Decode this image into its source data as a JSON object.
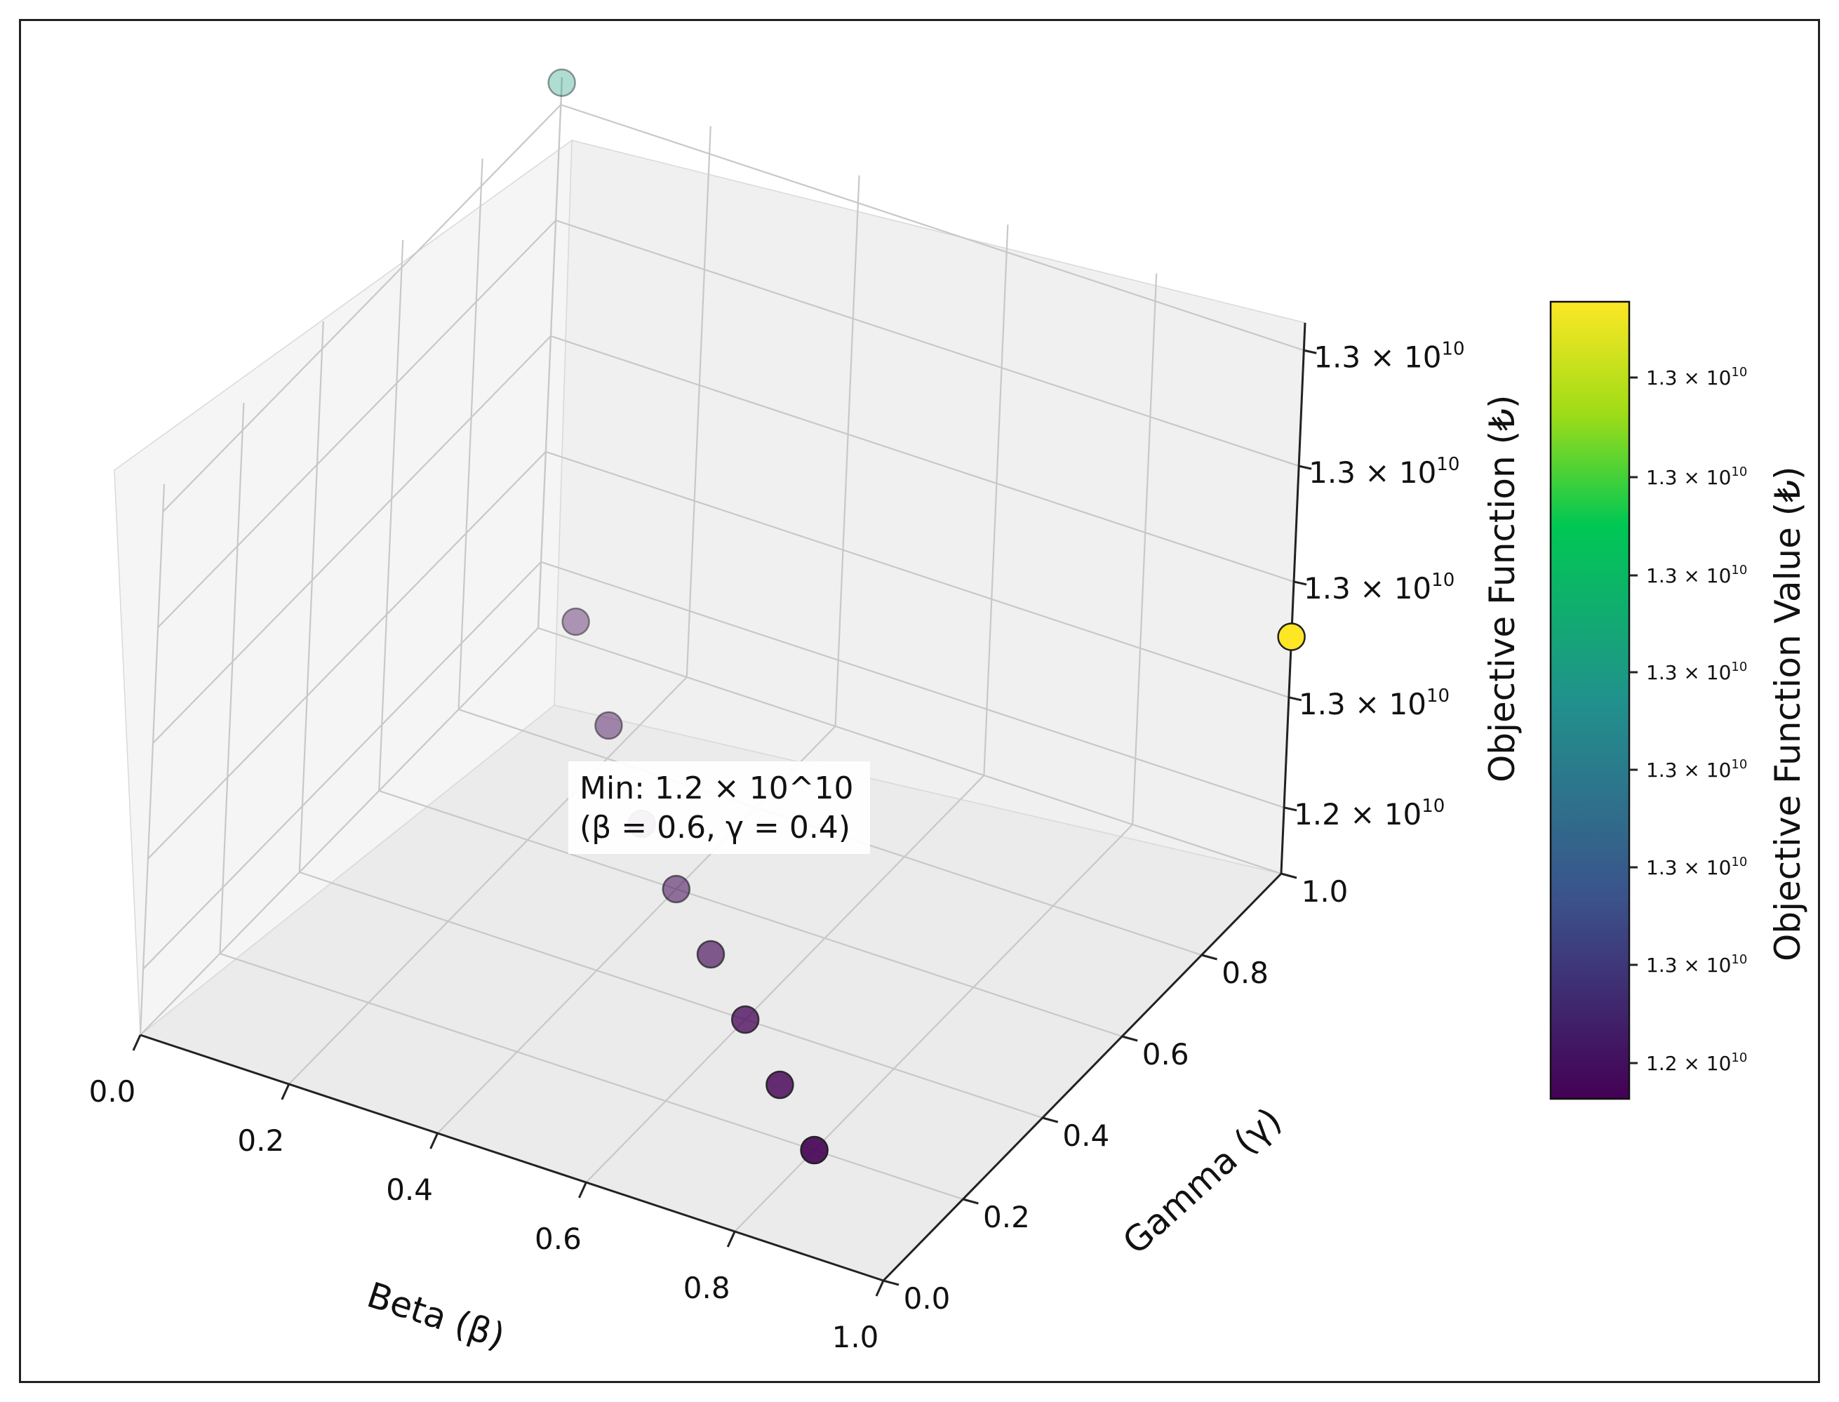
{
  "chart_data": {
    "type": "scatter3d",
    "x_label": "Beta (β)",
    "y_label": "Gamma (γ)",
    "z_label": "Objective Function (₺)",
    "x_ticks": [
      "0.0",
      "0.2",
      "0.4",
      "0.6",
      "0.8",
      "1.0"
    ],
    "y_ticks": [
      "0.0",
      "0.2",
      "0.4",
      "0.6",
      "0.8",
      "1.0"
    ],
    "z_ticks": [
      {
        "mant": "1.2 × 10",
        "exp": "10"
      },
      {
        "mant": "1.3 × 10",
        "exp": "10"
      },
      {
        "mant": "1.3 × 10",
        "exp": "10"
      },
      {
        "mant": "1.3 × 10",
        "exp": "10"
      },
      {
        "mant": "1.3 × 10",
        "exp": "10"
      }
    ],
    "colorbar": {
      "label": "Objective Function Value (₺)",
      "ticks": [
        {
          "mant": "1.2 × 10",
          "exp": "10"
        },
        {
          "mant": "1.3 × 10",
          "exp": "10"
        },
        {
          "mant": "1.3 × 10",
          "exp": "10"
        },
        {
          "mant": "1.3 × 10",
          "exp": "10"
        },
        {
          "mant": "1.3 × 10",
          "exp": "10"
        },
        {
          "mant": "1.3 × 10",
          "exp": "10"
        },
        {
          "mant": "1.3 × 10",
          "exp": "10"
        },
        {
          "mant": "1.3 × 10",
          "exp": "10"
        }
      ],
      "colors": [
        "#440154",
        "#3b528b",
        "#21918c",
        "#00c853",
        "#9fdc17",
        "#fde725"
      ]
    },
    "points": [
      {
        "beta": 0.0,
        "gamma": 1.0,
        "z": 0.99,
        "c": 0.55,
        "alpha": 0.35
      },
      {
        "beta": 0.1,
        "gamma": 0.9,
        "z": 0.13,
        "c": 0.02,
        "alpha": 0.4
      },
      {
        "beta": 0.2,
        "gamma": 0.8,
        "z": 0.06,
        "c": 0.02,
        "alpha": 0.45
      },
      {
        "beta": 0.3,
        "gamma": 0.7,
        "z": 0.0,
        "c": 0.02,
        "alpha": 0.5
      },
      {
        "beta": 0.4,
        "gamma": 0.6,
        "z": 0.0,
        "c": 0.02,
        "alpha": 0.55
      },
      {
        "beta": 0.5,
        "gamma": 0.5,
        "z": 0.0,
        "c": 0.02,
        "alpha": 0.65
      },
      {
        "beta": 0.6,
        "gamma": 0.4,
        "z": 0.0,
        "c": 0.0,
        "alpha": 0.75
      },
      {
        "beta": 0.7,
        "gamma": 0.3,
        "z": 0.0,
        "c": 0.0,
        "alpha": 0.82
      },
      {
        "beta": 0.8,
        "gamma": 0.2,
        "z": 0.0,
        "c": 0.0,
        "alpha": 0.9
      },
      {
        "beta": 1.0,
        "gamma": 1.0,
        "z": 0.43,
        "c": 1.0,
        "alpha": 1.0
      }
    ],
    "annotation": {
      "line1": "Min: 1.2 × 10^10",
      "line2": "(β = 0.6, γ = 0.4)"
    }
  }
}
